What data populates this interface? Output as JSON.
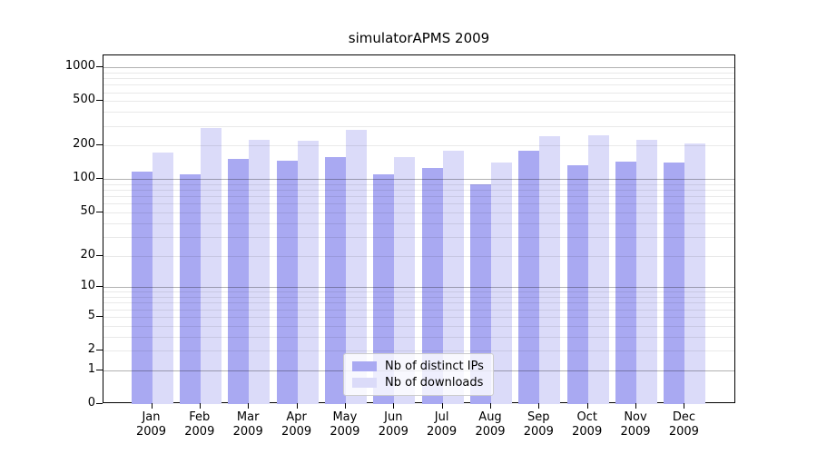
{
  "title": "simulatorAPMS 2009",
  "legend": {
    "items": [
      {
        "label": "Nb of distinct IPs",
        "color": "#a9a9f2"
      },
      {
        "label": "Nb of downloads",
        "color": "#dbdbf9"
      }
    ]
  },
  "colors": {
    "background": "#ffffff",
    "bar_distinct_ips": "#a9a9f2",
    "bar_downloads": "#dbdbf9",
    "major_gridline": "#b3b3b3",
    "minor_gridline": "#e8e8e8",
    "axis": "#000000"
  },
  "chart_data": {
    "type": "bar",
    "title": "simulatorAPMS 2009",
    "xlabel": "",
    "ylabel": "",
    "categories": [
      "Jan 2009",
      "Feb 2009",
      "Mar 2009",
      "Apr 2009",
      "May 2009",
      "Jun 2009",
      "Jul 2009",
      "Aug 2009",
      "Sep 2009",
      "Oct 2009",
      "Nov 2009",
      "Dec 2009"
    ],
    "series": [
      {
        "name": "Nb of distinct IPs",
        "color": "#a9a9f2",
        "values": [
          116,
          111,
          152,
          147,
          159,
          111,
          125,
          90,
          180,
          134,
          143,
          142
        ]
      },
      {
        "name": "Nb of downloads",
        "color": "#dbdbf9",
        "values": [
          175,
          285,
          224,
          220,
          277,
          159,
          180,
          142,
          242,
          246,
          224,
          210
        ]
      }
    ],
    "yscale": "log1p",
    "y_ticks": [
      0,
      1,
      2,
      5,
      10,
      20,
      50,
      100,
      200,
      500,
      1000
    ],
    "ylim": [
      0,
      1280
    ],
    "grid": "on",
    "legend_position": "lower center inside"
  }
}
